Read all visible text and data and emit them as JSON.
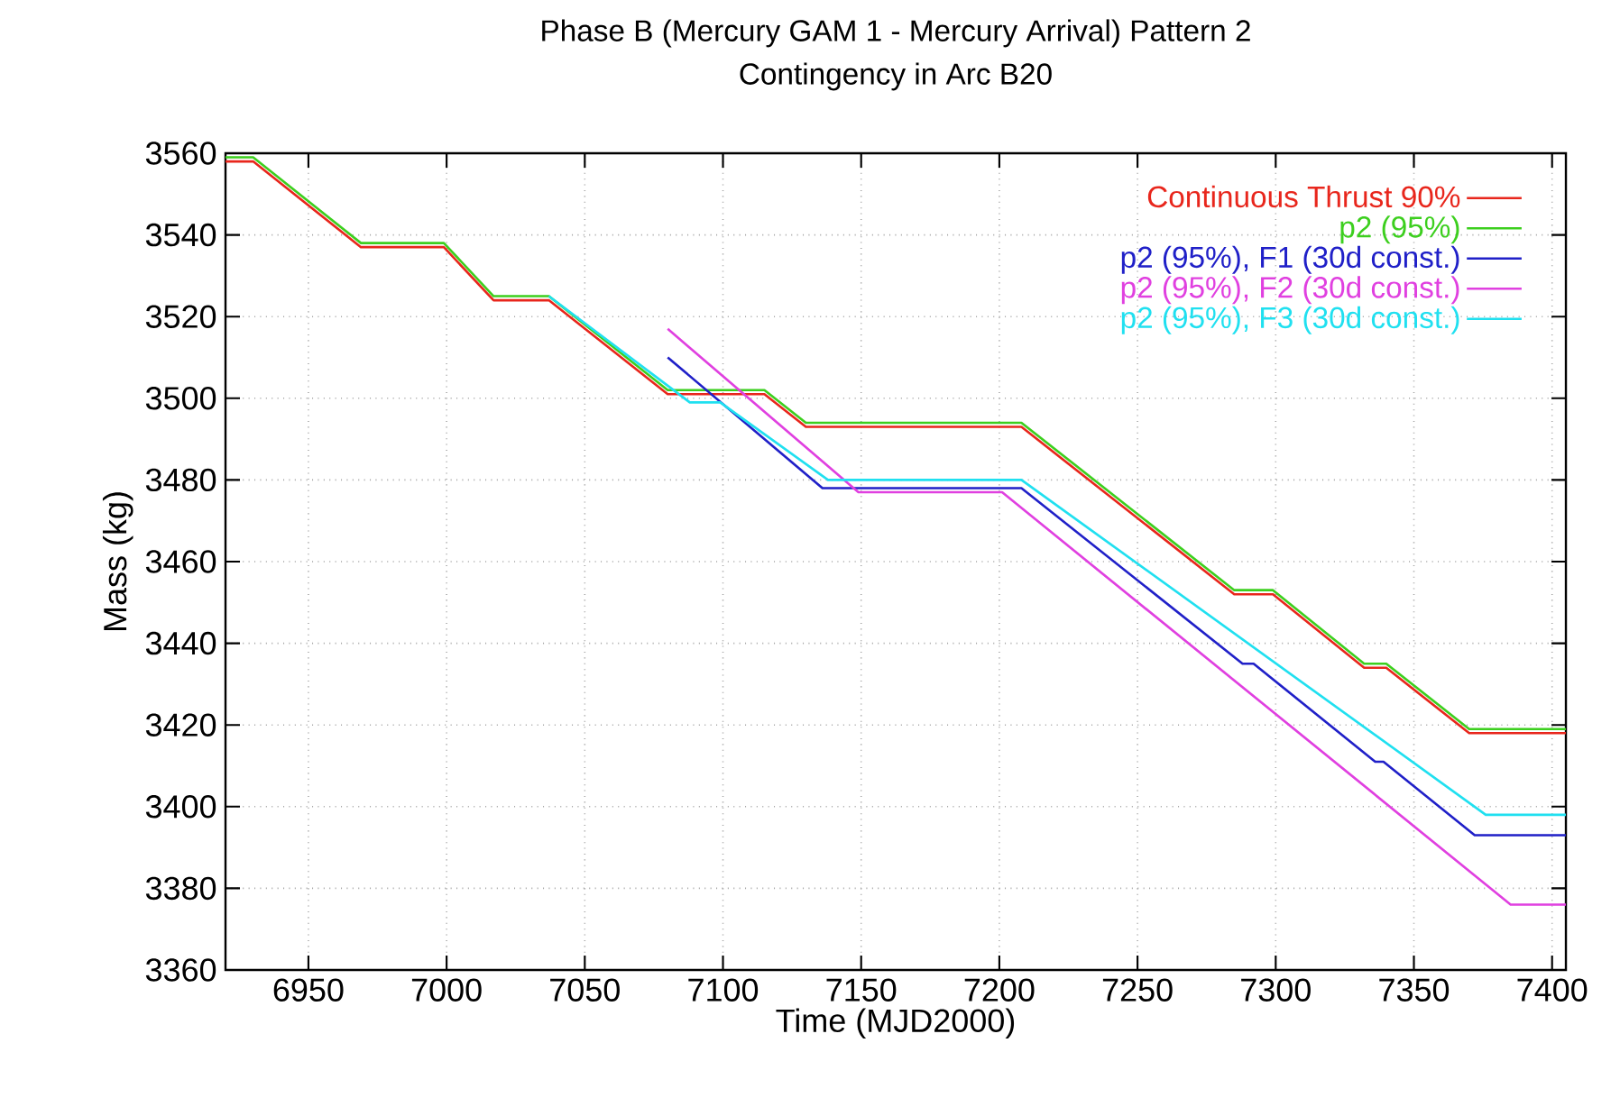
{
  "chart_data": {
    "type": "line",
    "title": "Phase B (Mercury GAM 1 - Mercury Arrival) Pattern 2",
    "subtitle": "Contingency in Arc B20",
    "xlabel": "Time (MJD2000)",
    "ylabel": "Mass (kg)",
    "xlim": [
      6920,
      7405
    ],
    "ylim": [
      3360,
      3560
    ],
    "xticks": [
      6950,
      7000,
      7050,
      7100,
      7150,
      7200,
      7250,
      7300,
      7350,
      7400
    ],
    "yticks": [
      3360,
      3380,
      3400,
      3420,
      3440,
      3460,
      3480,
      3500,
      3520,
      3540,
      3560
    ],
    "grid": true,
    "legend": "top right",
    "marker": "none",
    "line_style": "solid",
    "series": [
      {
        "name": "Continuous Thrust 90%",
        "color": "#e8261c",
        "x": [
          6920,
          6930,
          6969,
          6999,
          7017,
          7037,
          7080,
          7115,
          7130,
          7208,
          7285,
          7299,
          7332,
          7340,
          7370,
          7405
        ],
        "values": [
          3558,
          3558,
          3537,
          3537,
          3524,
          3524,
          3501,
          3501,
          3493,
          3493,
          3452,
          3452,
          3434,
          3434,
          3418,
          3418
        ]
      },
      {
        "name": "p2 (95%)",
        "color": "#3ccf1e",
        "x": [
          6920,
          6930,
          6969,
          6999,
          7017,
          7037,
          7080,
          7115,
          7130,
          7208,
          7285,
          7299,
          7332,
          7340,
          7370,
          7405
        ],
        "values": [
          3559,
          3559,
          3538,
          3538,
          3525,
          3525,
          3502,
          3502,
          3494,
          3494,
          3453,
          3453,
          3435,
          3435,
          3419,
          3419
        ]
      },
      {
        "name": "p2 (95%), F1 (30d const.)",
        "color": "#2020c8",
        "x": [
          7080,
          7136,
          7208,
          7288,
          7292,
          7336,
          7339,
          7372,
          7405
        ],
        "values": [
          3510,
          3478,
          3478,
          3435,
          3435,
          3411,
          3411,
          3393,
          3393
        ]
      },
      {
        "name": "p2 (95%), F2 (30d const.)",
        "color": "#e040e0",
        "x": [
          7080,
          7149,
          7201,
          7385,
          7405
        ],
        "values": [
          3517,
          3477,
          3477,
          3376,
          3376
        ]
      },
      {
        "name": "p2 (95%), F3 (30d const.)",
        "color": "#20e0f0",
        "x": [
          7037,
          7088,
          7099,
          7138,
          7208,
          7376,
          7405
        ],
        "values": [
          3525,
          3499,
          3499,
          3480,
          3480,
          3398,
          3398
        ]
      }
    ]
  }
}
